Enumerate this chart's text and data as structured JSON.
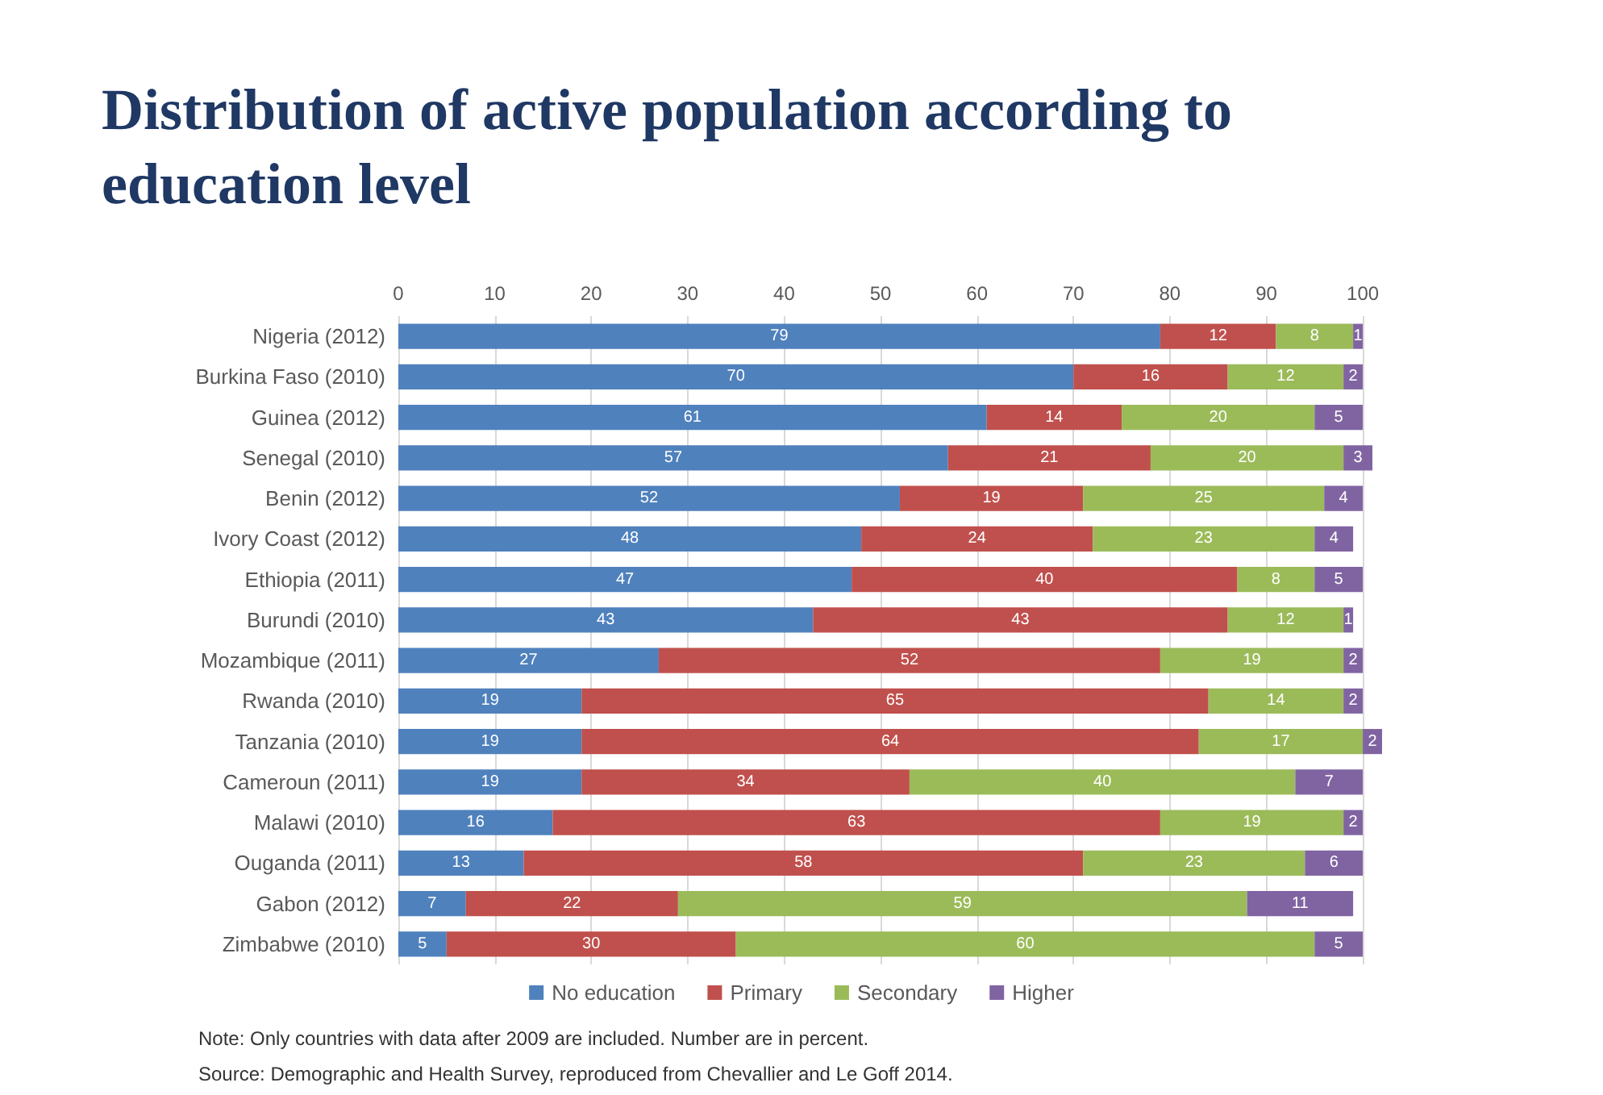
{
  "chart_data": {
    "type": "bar",
    "orientation": "horizontal",
    "stacked": true,
    "title": "Distribution of active population according to education level",
    "categories": [
      "Nigeria (2012)",
      "Burkina Faso (2010)",
      "Guinea (2012)",
      "Senegal (2010)",
      "Benin (2012)",
      "Ivory Coast (2012)",
      "Ethiopia (2011)",
      "Burundi (2010)",
      "Mozambique (2011)",
      "Rwanda (2010)",
      "Tanzania (2010)",
      "Cameroun (2011)",
      "Malawi (2010)",
      "Ouganda (2011)",
      "Gabon (2012)",
      "Zimbabwe (2010)"
    ],
    "series": [
      {
        "name": "No education",
        "color": "#4f81bd",
        "values": [
          79,
          70,
          61,
          57,
          52,
          48,
          47,
          43,
          27,
          19,
          19,
          19,
          16,
          13,
          7,
          5
        ]
      },
      {
        "name": "Primary",
        "color": "#c0504d",
        "values": [
          12,
          16,
          14,
          21,
          19,
          24,
          40,
          43,
          52,
          65,
          64,
          34,
          63,
          58,
          22,
          30
        ]
      },
      {
        "name": "Secondary",
        "color": "#9bbb59",
        "values": [
          8,
          12,
          20,
          20,
          25,
          23,
          8,
          12,
          19,
          14,
          17,
          40,
          19,
          23,
          59,
          60
        ]
      },
      {
        "name": "Higher",
        "color": "#8064a2",
        "values": [
          1,
          2,
          5,
          3,
          4,
          4,
          5,
          1,
          2,
          2,
          2,
          7,
          2,
          6,
          11,
          5
        ]
      }
    ],
    "xlim": [
      0,
      102
    ],
    "xticks": [
      0,
      10,
      20,
      30,
      40,
      50,
      60,
      70,
      80,
      90,
      100
    ],
    "grid": "x",
    "legend": "bottom",
    "data_labels": true,
    "annotations": [
      "Note: Only countries with data after 2009 are included. Number are in percent.",
      "Source: Demographic and Health Survey, reproduced from Chevallier and Le Goff 2014."
    ]
  }
}
